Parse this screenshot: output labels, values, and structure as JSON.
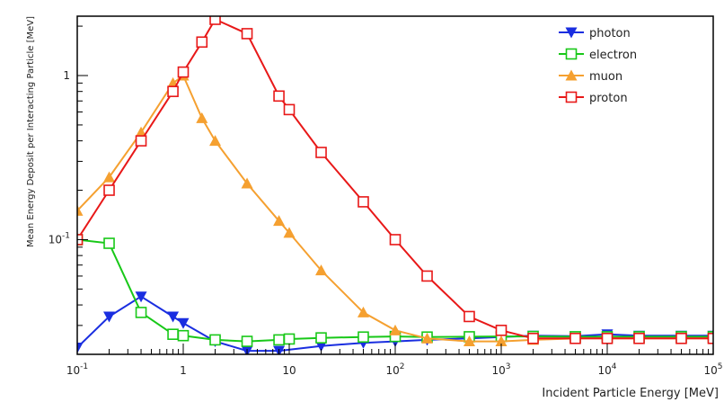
{
  "chart_data": {
    "type": "line",
    "title": "",
    "xlabel": "Incident Particle Energy [MeV]",
    "ylabel": "Mean Energy Deposit per Interacting Particle [MeV]",
    "x_scale": "log",
    "y_scale": "log",
    "xlim": [
      0.1,
      100000
    ],
    "ylim": [
      0.02,
      2.3
    ],
    "x_ticks": [
      {
        "value": 0.1,
        "label": "10",
        "exp": "-1"
      },
      {
        "value": 1,
        "label": "1",
        "exp": ""
      },
      {
        "value": 10,
        "label": "10",
        "exp": ""
      },
      {
        "value": 100,
        "label": "10",
        "exp": "2"
      },
      {
        "value": 1000,
        "label": "10",
        "exp": "3"
      },
      {
        "value": 10000,
        "label": "10",
        "exp": "4"
      },
      {
        "value": 100000,
        "label": "10",
        "exp": "5"
      }
    ],
    "y_ticks": [
      {
        "value": 0.1,
        "label": "10",
        "exp": "-1"
      },
      {
        "value": 1,
        "label": "1",
        "exp": ""
      }
    ],
    "grid": false,
    "legend_position": "top-right",
    "series": [
      {
        "name": "photon",
        "color": "#1a2ee0",
        "marker": "tri-down-filled",
        "x": [
          0.1,
          0.2,
          0.4,
          0.8,
          1,
          2,
          4,
          8,
          20,
          50,
          100,
          200,
          500,
          1000,
          2000,
          5000,
          10000,
          20000,
          50000,
          100000
        ],
        "y": [
          0.022,
          0.034,
          0.045,
          0.034,
          0.031,
          0.024,
          0.021,
          0.021,
          0.0225,
          0.0235,
          0.024,
          0.0245,
          0.025,
          0.0255,
          0.026,
          0.0258,
          0.0265,
          0.026,
          0.026,
          0.026
        ]
      },
      {
        "name": "electron",
        "color": "#18c818",
        "marker": "square-open",
        "x": [
          0.1,
          0.2,
          0.4,
          0.8,
          1,
          2,
          4,
          8,
          10,
          20,
          50,
          100,
          200,
          500,
          1000,
          2000,
          5000,
          10000,
          20000,
          50000,
          100000
        ],
        "y": [
          0.1,
          0.095,
          0.036,
          0.0265,
          0.026,
          0.0245,
          0.024,
          0.0245,
          0.0248,
          0.0252,
          0.0255,
          0.0257,
          0.0255,
          0.0256,
          0.0257,
          0.0257,
          0.0256,
          0.0256,
          0.0256,
          0.0256,
          0.0256
        ]
      },
      {
        "name": "muon",
        "color": "#f5a030",
        "marker": "tri-up-filled",
        "x": [
          0.1,
          0.2,
          0.4,
          0.8,
          1,
          1.5,
          2,
          4,
          8,
          10,
          20,
          50,
          100,
          200,
          500,
          1000,
          2000,
          5000,
          10000,
          20000,
          50000,
          100000
        ],
        "y": [
          0.15,
          0.24,
          0.45,
          0.9,
          1.0,
          0.55,
          0.4,
          0.22,
          0.13,
          0.11,
          0.065,
          0.036,
          0.028,
          0.025,
          0.024,
          0.024,
          0.0245,
          0.025,
          0.025,
          0.025,
          0.025,
          0.025
        ]
      },
      {
        "name": "proton",
        "color": "#e81818",
        "marker": "square-open",
        "x": [
          0.1,
          0.2,
          0.4,
          0.8,
          1,
          1.5,
          2,
          4,
          8,
          10,
          20,
          50,
          100,
          200,
          500,
          1000,
          2000,
          5000,
          10000,
          20000,
          50000,
          100000
        ],
        "y": [
          0.1,
          0.2,
          0.4,
          0.8,
          1.05,
          1.6,
          2.2,
          1.8,
          0.75,
          0.62,
          0.34,
          0.17,
          0.1,
          0.06,
          0.034,
          0.028,
          0.025,
          0.025,
          0.025,
          0.025,
          0.025,
          0.025
        ]
      }
    ]
  }
}
